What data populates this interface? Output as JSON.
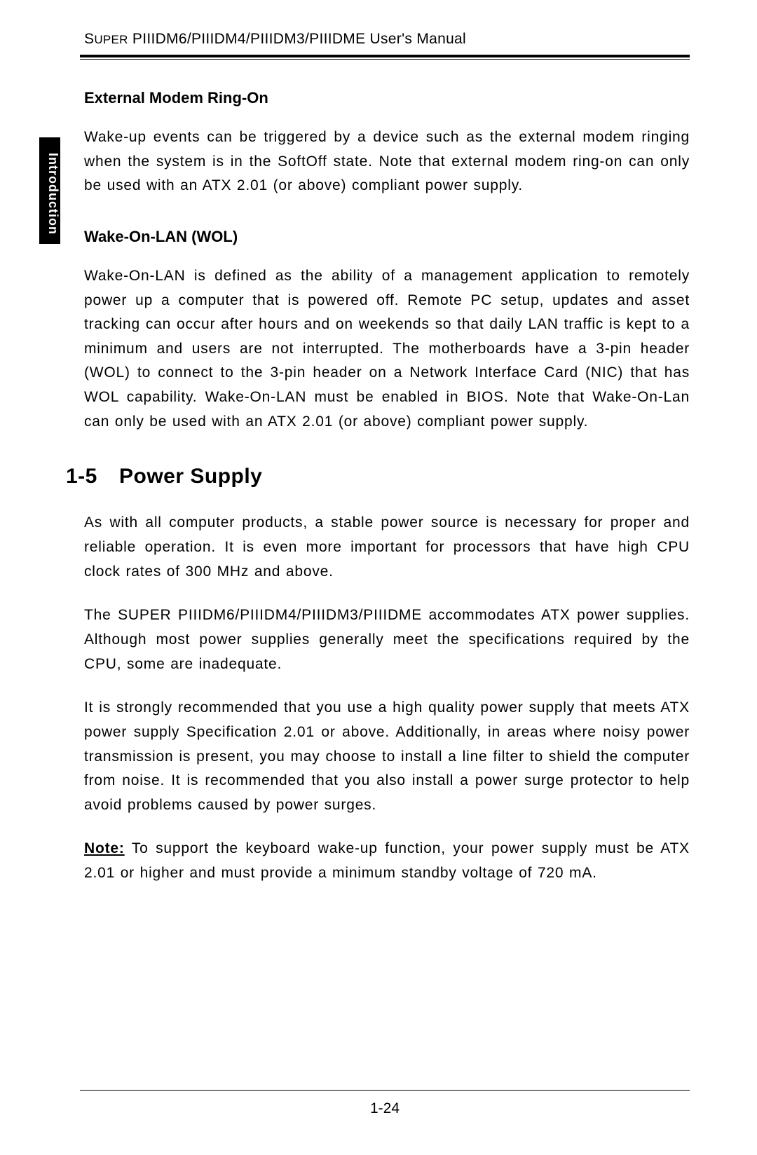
{
  "header": {
    "prefix_small": "S",
    "prefix_rest": "UPER",
    "models": " PIIIDM6/PIIIDM4/PIIIDM3/PIIIDME User's Manual"
  },
  "side_tab": "Introduction",
  "sub1": {
    "title": "External Modem Ring-On",
    "p1": "Wake-up events can be triggered by a device such as the external modem ringing when the system is in the SoftOff state. Note that external modem ring-on can only be used with an ATX 2.01 (or above) compliant power supply."
  },
  "sub2": {
    "title": "Wake-On-LAN (WOL)",
    "p1": "Wake-On-LAN is defined as the ability of a management application to remotely power up a computer that is powered off.  Remote PC setup, updates and asset tracking can occur after hours and on weekends so that daily LAN traffic is kept to a minimum and users are not interrupted.  The motherboards have a 3-pin header (WOL) to connect to the 3-pin header on a Network Interface Card (NIC) that has WOL capability.  Wake-On-LAN must be enabled in BIOS.  Note that Wake-On-Lan can only be used with an ATX 2.01 (or above) compliant power supply."
  },
  "section": {
    "num": "1-5",
    "title": "Power Supply",
    "p1": "As with all computer products, a stable power source is necessary for proper and reliable operation.  It is even more important for processors that have high CPU clock rates of 300 MHz and above.",
    "p2": "The SUPER PIIIDM6/PIIIDM4/PIIIDM3/PIIIDME accommodates ATX power supplies.  Although most power supplies generally meet the specifications required by the CPU, some are inadequate.",
    "p3": "It is strongly recommended that you use a high quality power supply that meets ATX power supply Specification 2.01 or above.  Additionally, in areas where noisy power transmission is present, you may choose to install a line filter to shield the computer from noise.  It is recommended that you also install a power surge protector to help avoid problems caused by power surges.",
    "note_label": "Note:",
    "note_body": "  To support the keyboard wake-up function, your power supply must be ATX 2.01 or higher and must provide a minimum standby voltage of 720 mA."
  },
  "page_number": "1-24"
}
